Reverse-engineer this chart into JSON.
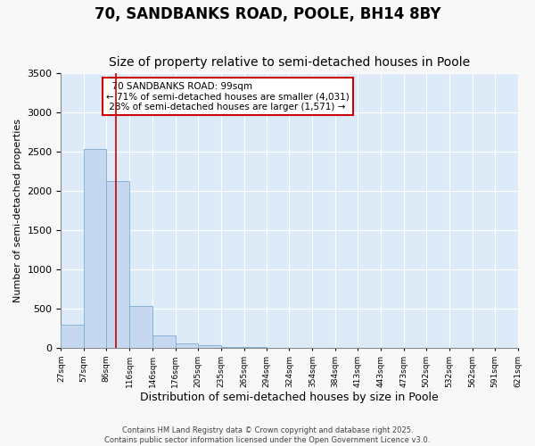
{
  "title1": "70, SANDBANKS ROAD, POOLE, BH14 8BY",
  "title2": "Size of property relative to semi-detached houses in Poole",
  "xlabel": "Distribution of semi-detached houses by size in Poole",
  "ylabel": "Number of semi-detached properties",
  "bar_color": "#c5d8f0",
  "bar_edge_color": "#7aadd4",
  "bin_edges": [
    27,
    57,
    86,
    116,
    146,
    176,
    205,
    235,
    265,
    294,
    324,
    354,
    384,
    413,
    443,
    473,
    502,
    532,
    562,
    591,
    621
  ],
  "bar_heights": [
    300,
    2540,
    2130,
    530,
    155,
    60,
    28,
    8,
    5,
    3,
    2,
    2,
    1,
    1,
    1,
    1,
    0,
    0,
    0,
    0
  ],
  "property_size": 99,
  "property_label": "70 SANDBANKS ROAD: 99sqm",
  "pct_smaller": 71,
  "pct_smaller_n": "4,031",
  "pct_larger": 28,
  "pct_larger_n": "1,571",
  "vline_color": "#cc0000",
  "annotation_box_color": "#cc0000",
  "ylim": [
    0,
    3500
  ],
  "plot_bg_color": "#ddeaf8",
  "fig_bg_color": "#f8f8f8",
  "grid_color": "#ffffff",
  "title_fontsize": 12,
  "subtitle_fontsize": 10,
  "footer1": "Contains HM Land Registry data © Crown copyright and database right 2025.",
  "footer2": "Contains public sector information licensed under the Open Government Licence v3.0."
}
